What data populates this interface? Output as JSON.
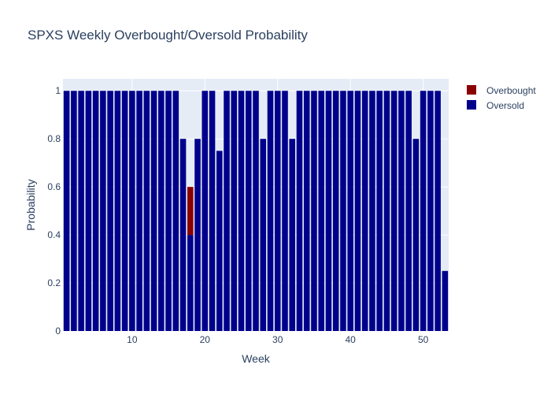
{
  "chart_data": {
    "type": "bar",
    "barmode": "stack",
    "title": "SPXS Weekly Overbought/Oversold Probability",
    "xlabel": "Week",
    "ylabel": "Probability",
    "xlim": [
      0.5,
      53.5
    ],
    "ylim": [
      0,
      1.05
    ],
    "xticks": [
      10,
      20,
      30,
      40,
      50
    ],
    "yticks": [
      0,
      0.2,
      0.4,
      0.6,
      0.8,
      1
    ],
    "ytick_labels": [
      "0",
      "0.2",
      "0.4",
      "0.6",
      "0.8",
      "1"
    ],
    "grid": true,
    "legend_position": "top-right",
    "x": [
      1,
      2,
      3,
      4,
      5,
      6,
      7,
      8,
      9,
      10,
      11,
      12,
      13,
      14,
      15,
      16,
      17,
      18,
      19,
      20,
      21,
      22,
      23,
      24,
      25,
      26,
      27,
      28,
      29,
      30,
      31,
      32,
      33,
      34,
      35,
      36,
      37,
      38,
      39,
      40,
      41,
      42,
      43,
      44,
      45,
      46,
      47,
      48,
      49,
      50,
      51,
      52,
      53
    ],
    "series": [
      {
        "name": "Overbought",
        "color": "#8b0000",
        "values": [
          0,
          0,
          0,
          0,
          0,
          0,
          0,
          0,
          0,
          0,
          0,
          0,
          0,
          0,
          0,
          0,
          0,
          0.2,
          0,
          0,
          0,
          0,
          0,
          0,
          0,
          0,
          0,
          0,
          0,
          0,
          0,
          0,
          0,
          0,
          0,
          0,
          0,
          0,
          0,
          0,
          0,
          0,
          0,
          0,
          0,
          0,
          0,
          0,
          0,
          0,
          0,
          0,
          0
        ]
      },
      {
        "name": "Oversold",
        "color": "#00008b",
        "values": [
          1,
          1,
          1,
          1,
          1,
          1,
          1,
          1,
          1,
          1,
          1,
          1,
          1,
          1,
          1,
          1,
          0.8,
          0.4,
          0.8,
          1,
          1,
          0.75,
          1,
          1,
          1,
          1,
          1,
          0.8,
          1,
          1,
          1,
          0.8,
          1,
          1,
          1,
          1,
          1,
          1,
          1,
          1,
          1,
          1,
          1,
          1,
          1,
          1,
          1,
          1,
          0.8,
          1,
          1,
          1,
          0.25
        ]
      }
    ]
  }
}
